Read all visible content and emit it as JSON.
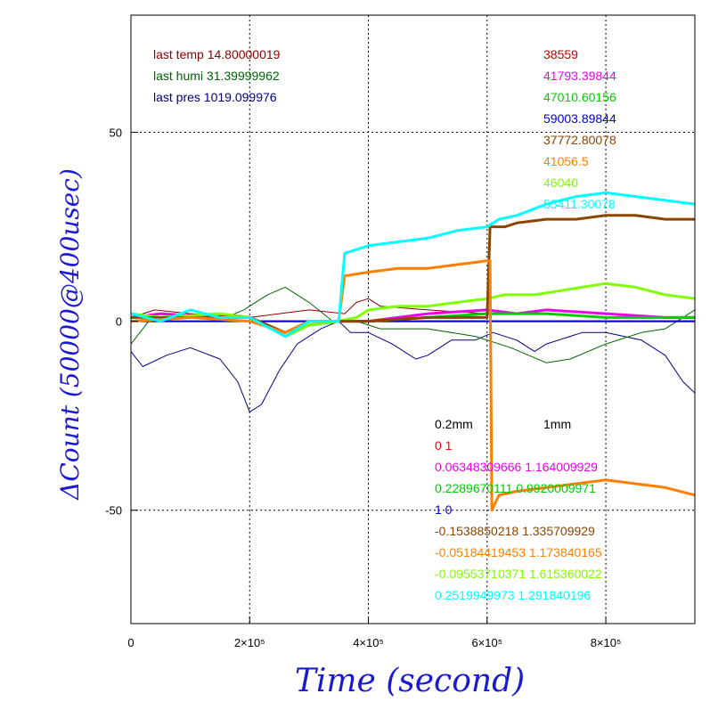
{
  "chart_data": {
    "type": "line",
    "xlabel": "Time (second)",
    "ylabel": "ΔCount (50000@400usec)",
    "xlim": [
      0,
      950000
    ],
    "ylim": [
      -80,
      81
    ],
    "x_ticks": [
      {
        "value": 0,
        "label": "0"
      },
      {
        "value": 200000,
        "label": "2×10⁵"
      },
      {
        "value": 400000,
        "label": "4×10⁵"
      },
      {
        "value": 600000,
        "label": "6×10⁵"
      },
      {
        "value": 800000,
        "label": "8×10⁵"
      }
    ],
    "y_ticks": [
      {
        "value": -50,
        "label": "-50"
      },
      {
        "value": 0,
        "label": "0"
      },
      {
        "value": 50,
        "label": "50"
      }
    ],
    "grid": "dotted",
    "env_labels": [
      {
        "text": "last temp 14.80000019",
        "color": "#8b0000"
      },
      {
        "text": "last humi 31.39999962",
        "color": "#006400"
      },
      {
        "text": "last pres 1019.099976",
        "color": "#000080"
      }
    ],
    "count_labels": [
      {
        "text": "38559",
        "color": "#cc0000"
      },
      {
        "text": "41793.39844",
        "color": "#ee00ee"
      },
      {
        "text": "47010.60156",
        "color": "#00cc00"
      },
      {
        "text": "59003.89844",
        "color": "#0000cc"
      },
      {
        "text": "37772.80078",
        "color": "#8b4500"
      },
      {
        "text": "41056.5",
        "color": "#ff7f00"
      },
      {
        "text": "46040",
        "color": "#7fff00"
      },
      {
        "text": "55411.30078",
        "color": "#00ffff"
      }
    ],
    "coef_header": {
      "left": "0.2mm",
      "right": "1mm"
    },
    "coef_labels": [
      {
        "text": "0 1",
        "color": "#ff0000"
      },
      {
        "text": "0.06348309666 1.164009929",
        "color": "#ee00ee"
      },
      {
        "text": "0.2289670111 0.9920009971",
        "color": "#00cc00"
      },
      {
        "text": "1 0",
        "color": "#0000cc"
      },
      {
        "text": "-0.1538850218 1.335709929",
        "color": "#8b4500"
      },
      {
        "text": "-0.05184419453 1.173840165",
        "color": "#ff7f00"
      },
      {
        "text": "-0.09553710371 1.615360022",
        "color": "#7fff00"
      },
      {
        "text": "0.2519949973 1.291840196",
        "color": "#00ffff"
      }
    ],
    "series": [
      {
        "color": "#000080",
        "width": 1,
        "points": [
          [
            0,
            -8
          ],
          [
            20000,
            -12
          ],
          [
            60000,
            -9
          ],
          [
            100000,
            -7
          ],
          [
            150000,
            -10
          ],
          [
            180000,
            -16
          ],
          [
            200000,
            -24
          ],
          [
            220000,
            -22
          ],
          [
            250000,
            -13
          ],
          [
            280000,
            -6
          ],
          [
            320000,
            -2
          ],
          [
            350000,
            0
          ],
          [
            370000,
            -3
          ],
          [
            400000,
            -3
          ],
          [
            440000,
            -6
          ],
          [
            480000,
            -10
          ],
          [
            500000,
            -9
          ],
          [
            540000,
            -5
          ],
          [
            580000,
            -5
          ],
          [
            610000,
            -3
          ],
          [
            650000,
            -5
          ],
          [
            680000,
            -8
          ],
          [
            700000,
            -6
          ],
          [
            760000,
            -3
          ],
          [
            800000,
            -3
          ],
          [
            860000,
            -5
          ],
          [
            900000,
            -9
          ],
          [
            930000,
            -16
          ],
          [
            950000,
            -19
          ]
        ]
      },
      {
        "color": "#006400",
        "width": 1,
        "points": [
          [
            0,
            -6
          ],
          [
            30000,
            0
          ],
          [
            100000,
            2
          ],
          [
            160000,
            1
          ],
          [
            190000,
            3
          ],
          [
            230000,
            7
          ],
          [
            260000,
            9
          ],
          [
            300000,
            5
          ],
          [
            340000,
            0
          ],
          [
            380000,
            0
          ],
          [
            420000,
            -2
          ],
          [
            500000,
            -2
          ],
          [
            580000,
            -4
          ],
          [
            600000,
            -5
          ],
          [
            640000,
            -7
          ],
          [
            700000,
            -11
          ],
          [
            740000,
            -10
          ],
          [
            800000,
            -6
          ],
          [
            860000,
            -3
          ],
          [
            900000,
            -2
          ],
          [
            950000,
            3
          ]
        ]
      },
      {
        "color": "#8b0000",
        "width": 1,
        "points": [
          [
            0,
            1
          ],
          [
            40000,
            3
          ],
          [
            100000,
            2
          ],
          [
            200000,
            1
          ],
          [
            300000,
            3
          ],
          [
            360000,
            2
          ],
          [
            380000,
            5
          ],
          [
            400000,
            6
          ],
          [
            420000,
            4
          ],
          [
            500000,
            3
          ],
          [
            600000,
            2
          ],
          [
            700000,
            2
          ],
          [
            800000,
            1
          ],
          [
            900000,
            1
          ],
          [
            950000,
            1
          ]
        ]
      },
      {
        "color": "#ff0000",
        "width": 2,
        "points": [
          [
            0,
            0
          ],
          [
            100000,
            1
          ],
          [
            200000,
            0
          ],
          [
            300000,
            0
          ],
          [
            400000,
            0
          ],
          [
            500000,
            0
          ],
          [
            600000,
            0
          ],
          [
            700000,
            0
          ],
          [
            800000,
            0
          ],
          [
            900000,
            0
          ],
          [
            950000,
            0
          ]
        ]
      },
      {
        "color": "#0000cc",
        "width": 2,
        "points": [
          [
            0,
            0
          ],
          [
            100000,
            0
          ],
          [
            200000,
            0
          ],
          [
            300000,
            0
          ],
          [
            400000,
            0
          ],
          [
            500000,
            0
          ],
          [
            600000,
            0
          ],
          [
            700000,
            0
          ],
          [
            800000,
            0
          ],
          [
            900000,
            0
          ],
          [
            950000,
            0
          ]
        ]
      },
      {
        "color": "#ee00ee",
        "width": 3,
        "points": [
          [
            0,
            1
          ],
          [
            50000,
            2
          ],
          [
            150000,
            1
          ],
          [
            200000,
            1
          ],
          [
            230000,
            -1
          ],
          [
            260000,
            -4
          ],
          [
            300000,
            -1
          ],
          [
            350000,
            0
          ],
          [
            400000,
            0
          ],
          [
            500000,
            2
          ],
          [
            600000,
            3
          ],
          [
            650000,
            2
          ],
          [
            700000,
            3
          ],
          [
            800000,
            2
          ],
          [
            900000,
            1
          ],
          [
            950000,
            1
          ]
        ]
      },
      {
        "color": "#00cc00",
        "width": 3,
        "points": [
          [
            0,
            0
          ],
          [
            100000,
            1
          ],
          [
            200000,
            1
          ],
          [
            260000,
            -4
          ],
          [
            300000,
            -1
          ],
          [
            350000,
            0
          ],
          [
            400000,
            0
          ],
          [
            500000,
            1
          ],
          [
            600000,
            2
          ],
          [
            700000,
            2
          ],
          [
            800000,
            1
          ],
          [
            900000,
            1
          ],
          [
            950000,
            1
          ]
        ]
      },
      {
        "color": "#7fff00",
        "width": 3,
        "points": [
          [
            0,
            2
          ],
          [
            50000,
            1
          ],
          [
            150000,
            2
          ],
          [
            200000,
            1
          ],
          [
            260000,
            -4
          ],
          [
            300000,
            -1
          ],
          [
            350000,
            0
          ],
          [
            380000,
            1
          ],
          [
            400000,
            3
          ],
          [
            450000,
            4
          ],
          [
            500000,
            4
          ],
          [
            550000,
            5
          ],
          [
            600000,
            6
          ],
          [
            630000,
            7
          ],
          [
            680000,
            7
          ],
          [
            720000,
            8
          ],
          [
            760000,
            9
          ],
          [
            800000,
            10
          ],
          [
            850000,
            9
          ],
          [
            900000,
            7
          ],
          [
            950000,
            6
          ]
        ]
      },
      {
        "color": "#8b4500",
        "width": 3,
        "points": [
          [
            0,
            1
          ],
          [
            100000,
            1
          ],
          [
            200000,
            1
          ],
          [
            260000,
            -3
          ],
          [
            300000,
            0
          ],
          [
            350000,
            0
          ],
          [
            400000,
            0
          ],
          [
            500000,
            1
          ],
          [
            580000,
            1
          ],
          [
            600000,
            1
          ],
          [
            605000,
            25
          ],
          [
            630000,
            25
          ],
          [
            650000,
            26
          ],
          [
            700000,
            27
          ],
          [
            750000,
            27
          ],
          [
            800000,
            28
          ],
          [
            850000,
            28
          ],
          [
            900000,
            27
          ],
          [
            950000,
            27
          ]
        ]
      },
      {
        "color": "#ff7f00",
        "width": 3,
        "points": [
          [
            0,
            0
          ],
          [
            100000,
            1
          ],
          [
            200000,
            0
          ],
          [
            260000,
            -3
          ],
          [
            300000,
            0
          ],
          [
            350000,
            0
          ],
          [
            360000,
            12
          ],
          [
            400000,
            13
          ],
          [
            450000,
            14
          ],
          [
            500000,
            14
          ],
          [
            550000,
            15
          ],
          [
            600000,
            16
          ],
          [
            605000,
            16
          ],
          [
            608000,
            -50
          ],
          [
            620000,
            -46
          ],
          [
            650000,
            -45
          ],
          [
            700000,
            -44
          ],
          [
            750000,
            -43
          ],
          [
            800000,
            -42
          ],
          [
            850000,
            -43
          ],
          [
            900000,
            -44
          ],
          [
            950000,
            -46
          ]
        ]
      },
      {
        "color": "#00ffff",
        "width": 3,
        "points": [
          [
            0,
            2
          ],
          [
            50000,
            0
          ],
          [
            100000,
            3
          ],
          [
            150000,
            1
          ],
          [
            200000,
            1
          ],
          [
            260000,
            -4
          ],
          [
            300000,
            0
          ],
          [
            350000,
            0
          ],
          [
            360000,
            18
          ],
          [
            400000,
            20
          ],
          [
            450000,
            21
          ],
          [
            500000,
            22
          ],
          [
            550000,
            24
          ],
          [
            600000,
            25
          ],
          [
            620000,
            27
          ],
          [
            650000,
            28
          ],
          [
            700000,
            31
          ],
          [
            750000,
            33
          ],
          [
            800000,
            34
          ],
          [
            850000,
            33
          ],
          [
            900000,
            32
          ],
          [
            950000,
            31
          ]
        ]
      }
    ]
  }
}
